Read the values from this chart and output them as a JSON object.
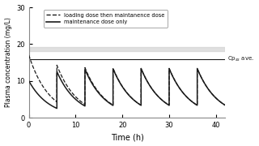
{
  "title": "",
  "xlabel": "Time (h)",
  "ylabel": "Plasma concentration (mg/L)",
  "xlim": [
    0,
    42
  ],
  "ylim": [
    0,
    30
  ],
  "xticks": [
    0,
    10,
    20,
    30,
    40
  ],
  "yticks": [
    0,
    10,
    20,
    30
  ],
  "cpss_ave": 16.0,
  "cpss_label": "Cp$_{ss}$ ave.",
  "dose_interval": 6.0,
  "n_doses": 7,
  "ke": 0.23,
  "loading_dose": 17.0,
  "maintenance_dose": 10.0,
  "gray_band_low": 18.0,
  "gray_band_high": 19.3,
  "background_color": "#ffffff",
  "line_color": "#1a1a1a",
  "legend_dashed": "loading dose then maintanence dose",
  "legend_solid": "maintenance dose only",
  "figsize": [
    3.2,
    1.8
  ],
  "dpi": 100
}
